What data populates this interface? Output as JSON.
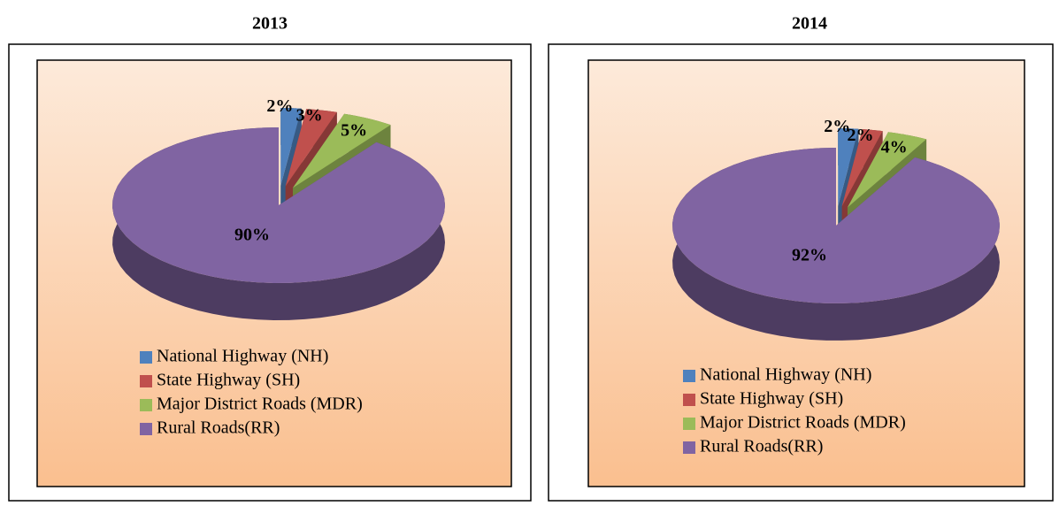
{
  "chart_data": [
    {
      "type": "pie",
      "title": "2013",
      "categories": [
        "National Highway (NH)",
        "State Highway (SH)",
        "Major District Roads (MDR)",
        "Rural Roads(RR)"
      ],
      "values": [
        2,
        3,
        5,
        90
      ],
      "value_labels": [
        "2%",
        "3%",
        "5%",
        "90%"
      ],
      "colors": [
        "#4f81bd",
        "#c0504d",
        "#9bbb59",
        "#8064a2"
      ],
      "legend": "bottom"
    },
    {
      "type": "pie",
      "title": "2014",
      "categories": [
        "National Highway (NH)",
        "State Highway (SH)",
        "Major District Roads (MDR)",
        "Rural Roads(RR)"
      ],
      "values": [
        2,
        2,
        4,
        92
      ],
      "value_labels": [
        "2%",
        "2%",
        "4%",
        "92%"
      ],
      "colors": [
        "#4f81bd",
        "#c0504d",
        "#9bbb59",
        "#8064a2"
      ],
      "legend": "bottom"
    }
  ]
}
